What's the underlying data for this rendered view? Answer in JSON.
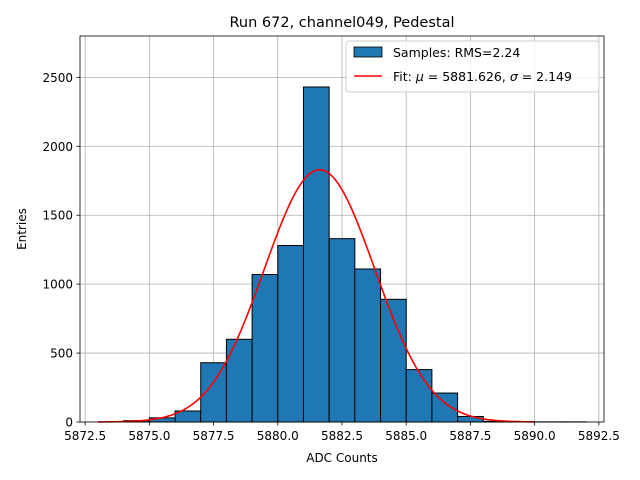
{
  "chart_data": {
    "type": "bar",
    "title": "Run 672, channel049, Pedestal",
    "xlabel": "ADC Counts",
    "ylabel": "Entries",
    "xlim": [
      5872.3,
      5892.7
    ],
    "ylim": [
      0,
      2800
    ],
    "xticks": [
      5872.5,
      5875.0,
      5877.5,
      5880.0,
      5882.5,
      5885.0,
      5887.5,
      5890.0,
      5892.5
    ],
    "xtick_labels": [
      "5872.5",
      "5875.0",
      "5877.5",
      "5880.0",
      "5882.5",
      "5885.0",
      "5887.5",
      "5890.0",
      "5892.5"
    ],
    "yticks": [
      0,
      500,
      1000,
      1500,
      2000,
      2500
    ],
    "ytick_labels": [
      "0",
      "500",
      "1000",
      "1500",
      "2000",
      "2500"
    ],
    "grid": true,
    "bin_width": 1,
    "histogram": {
      "name": "Samples: RMS=2.24",
      "color": "#1f77b4",
      "edge_color": "#000000",
      "bin_starts": [
        5874,
        5875,
        5876,
        5877,
        5878,
        5879,
        5880,
        5881,
        5882,
        5883,
        5884,
        5885,
        5886,
        5887,
        5888,
        5889,
        5890,
        5891
      ],
      "values": [
        10,
        30,
        80,
        430,
        600,
        1070,
        1280,
        2430,
        1330,
        1110,
        890,
        380,
        210,
        40,
        5,
        2,
        1,
        1
      ]
    },
    "fit": {
      "name": "Fit: μ = 5881.626, σ = 2.149",
      "name_prefix": "Fit: ",
      "mu_symbol": "μ",
      "mu_value": " = 5881.626, ",
      "sigma_symbol": "σ",
      "sigma_value": " = 2.149",
      "color": "#ff0000",
      "mu": 5881.626,
      "sigma": 2.149,
      "amplitude": 1830,
      "x_range": [
        5873,
        5890
      ]
    },
    "legend_position": "top-right"
  }
}
